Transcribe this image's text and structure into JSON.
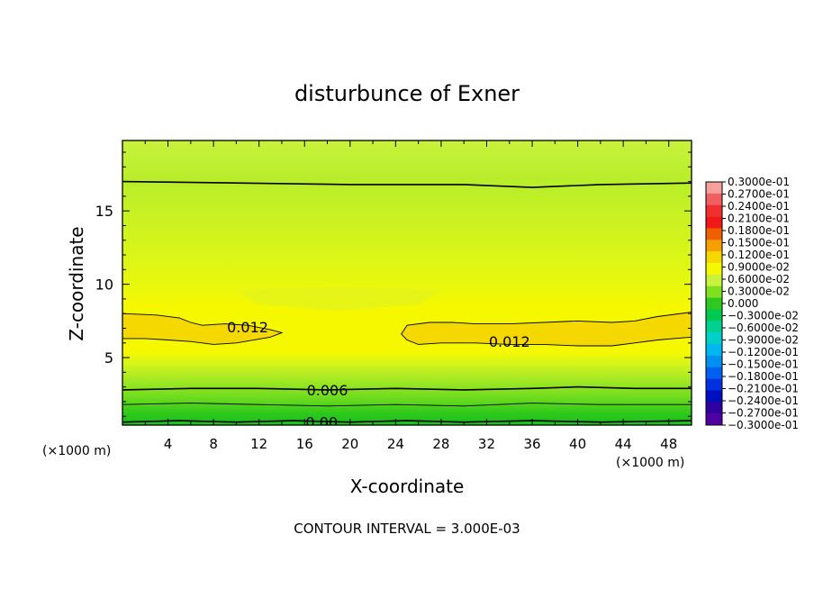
{
  "chart_data": {
    "type": "heatmap",
    "title": "disturbunce of Exner",
    "xlabel": "X-coordinate",
    "ylabel": "Z-coordinate",
    "x_unit_left": "(×1000 m)",
    "x_unit_right": "(×1000 m)",
    "xlim": [
      0,
      50
    ],
    "ylim": [
      0.4,
      19.8
    ],
    "x_ticks": [
      4,
      8,
      12,
      16,
      20,
      24,
      28,
      32,
      36,
      40,
      44,
      48
    ],
    "y_ticks": [
      5,
      10,
      15
    ],
    "footer": "CONTOUR INTERVAL = 3.000E-03",
    "contour_interval": 0.003,
    "contour_labels": [
      {
        "text": "0.012",
        "x": 11,
        "z": 7.1
      },
      {
        "text": "0.012",
        "x": 34,
        "z": 6.1
      },
      {
        "text": "0.006",
        "x": 18,
        "z": 2.8
      },
      {
        "text": "0.00",
        "x": 17.5,
        "z": 0.6
      }
    ],
    "contours": [
      {
        "level": 0.015,
        "closed": true,
        "points": [
          [
            0,
            8
          ],
          [
            3,
            7.9
          ],
          [
            5,
            7.7
          ],
          [
            6,
            7.4
          ],
          [
            7,
            7.2
          ],
          [
            9,
            7.3
          ],
          [
            11,
            7.2
          ],
          [
            13,
            6.9
          ],
          [
            14,
            6.7
          ],
          [
            13,
            6.4
          ],
          [
            10,
            6
          ],
          [
            8,
            5.9
          ],
          [
            6,
            6.1
          ],
          [
            4,
            6.2
          ],
          [
            2,
            6.3
          ],
          [
            0,
            6.3
          ]
        ]
      },
      {
        "level": 0.015,
        "closed": true,
        "points": [
          [
            50,
            8.1
          ],
          [
            47,
            7.8
          ],
          [
            45,
            7.5
          ],
          [
            43,
            7.4
          ],
          [
            40,
            7.5
          ],
          [
            37,
            7.4
          ],
          [
            34,
            7.3
          ],
          [
            31,
            7.3
          ],
          [
            29,
            7.4
          ],
          [
            27,
            7.4
          ],
          [
            25,
            7.2
          ],
          [
            24.5,
            6.6
          ],
          [
            25,
            6.2
          ],
          [
            26,
            5.9
          ],
          [
            28,
            6
          ],
          [
            31,
            6
          ],
          [
            34,
            5.9
          ],
          [
            37,
            5.9
          ],
          [
            40,
            5.8
          ],
          [
            43,
            5.8
          ],
          [
            45,
            6
          ],
          [
            47,
            6.2
          ],
          [
            50,
            6.4
          ]
        ]
      },
      {
        "level": 0.012,
        "closed": false,
        "points": [
          [
            0,
            17
          ],
          [
            10,
            16.9
          ],
          [
            20,
            16.8
          ],
          [
            30,
            16.8
          ],
          [
            36,
            16.6
          ],
          [
            42,
            16.8
          ],
          [
            50,
            16.9
          ]
        ]
      },
      {
        "level": 0.006,
        "closed": false,
        "points": [
          [
            0,
            2.8
          ],
          [
            6,
            2.9
          ],
          [
            12,
            2.9
          ],
          [
            18,
            2.8
          ],
          [
            24,
            2.9
          ],
          [
            30,
            2.8
          ],
          [
            36,
            2.9
          ],
          [
            40,
            3
          ],
          [
            45,
            2.9
          ],
          [
            50,
            2.9
          ]
        ]
      },
      {
        "level": 0.003,
        "closed": false,
        "points": [
          [
            0,
            1.8
          ],
          [
            6,
            1.9
          ],
          [
            12,
            1.8
          ],
          [
            18,
            1.7
          ],
          [
            24,
            1.8
          ],
          [
            30,
            1.7
          ],
          [
            36,
            1.9
          ],
          [
            42,
            1.8
          ],
          [
            50,
            1.8
          ]
        ]
      },
      {
        "level": 0.0,
        "closed": false,
        "points": [
          [
            0,
            0.6
          ],
          [
            5,
            0.7
          ],
          [
            10,
            0.6
          ],
          [
            15,
            0.7
          ],
          [
            20,
            0.6
          ],
          [
            25,
            0.7
          ],
          [
            30,
            0.6
          ],
          [
            36,
            0.7
          ],
          [
            42,
            0.6
          ],
          [
            50,
            0.7
          ]
        ]
      }
    ],
    "fill_bands_z": [
      {
        "z": 19.8,
        "color": "#c8f23c"
      },
      {
        "z": 17.0,
        "color": "#b8ee2a"
      },
      {
        "z": 12.5,
        "color": "#d6f51a"
      },
      {
        "z": 9.5,
        "color": "#ecf80a"
      },
      {
        "z": 8.5,
        "color": "#f6f800"
      },
      {
        "z": 5.4,
        "color": "#f6f800"
      },
      {
        "z": 4.6,
        "color": "#d6f51a"
      },
      {
        "z": 3.6,
        "color": "#a8ea24"
      },
      {
        "z": 2.3,
        "color": "#70dc1e"
      },
      {
        "z": 1.2,
        "color": "#2ec81a"
      },
      {
        "z": 0.4,
        "color": "#18c020"
      }
    ],
    "center_bulge": {
      "x": 19,
      "z_top": 9.8,
      "color": "#e4f51a"
    },
    "core_color": "#f5d800",
    "colorbar": {
      "labels": [
        "0.3000e-01",
        "0.2700e-01",
        "0.2400e-01",
        "0.2100e-01",
        "0.1800e-01",
        "0.1500e-01",
        "0.1200e-01",
        "0.9000e-02",
        "0.6000e-02",
        "0.3000e-02",
        "0.000",
        "−0.3000e-02",
        "−0.6000e-02",
        "−0.9000e-02",
        "−0.1200e-01",
        "−0.1500e-01",
        "−0.1800e-01",
        "−0.2100e-01",
        "−0.2400e-01",
        "−0.2700e-01",
        "−0.3000e-01"
      ],
      "colors": [
        "#f7a0a0",
        "#f06060",
        "#f03030",
        "#f01818",
        "#f06000",
        "#f5a000",
        "#f5d800",
        "#f6f800",
        "#c8f23c",
        "#80e020",
        "#30c820",
        "#00c850",
        "#00d090",
        "#00d0c8",
        "#00b8f0",
        "#0090f0",
        "#0060f0",
        "#0030e0",
        "#0010c0",
        "#3000a0",
        "#5000a0"
      ]
    }
  }
}
